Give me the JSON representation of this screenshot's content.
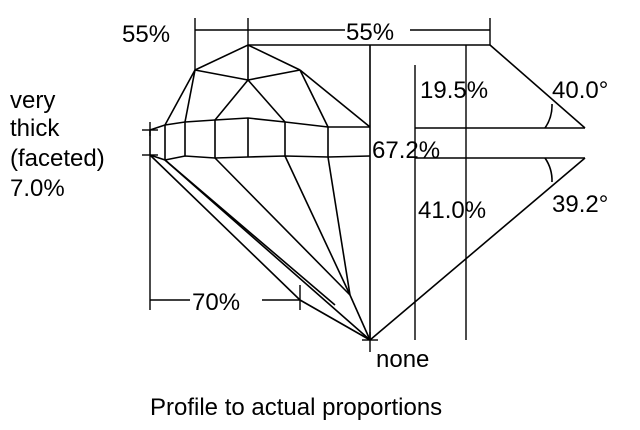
{
  "labels": {
    "crown_height": "19.5%",
    "crown_angle": "40.0°",
    "total_depth": "67.2%",
    "pavilion_depth": "41.0%",
    "pavilion_angle": "39.2°",
    "star_length": "55%",
    "table_size": "55%",
    "lower_half_length": "70%",
    "culet": "none",
    "girdle_line1": "very",
    "girdle_line2": "thick",
    "girdle_line3": "(faceted)",
    "girdle_line4": "7.0%"
  },
  "caption": "Profile to actual proportions"
}
